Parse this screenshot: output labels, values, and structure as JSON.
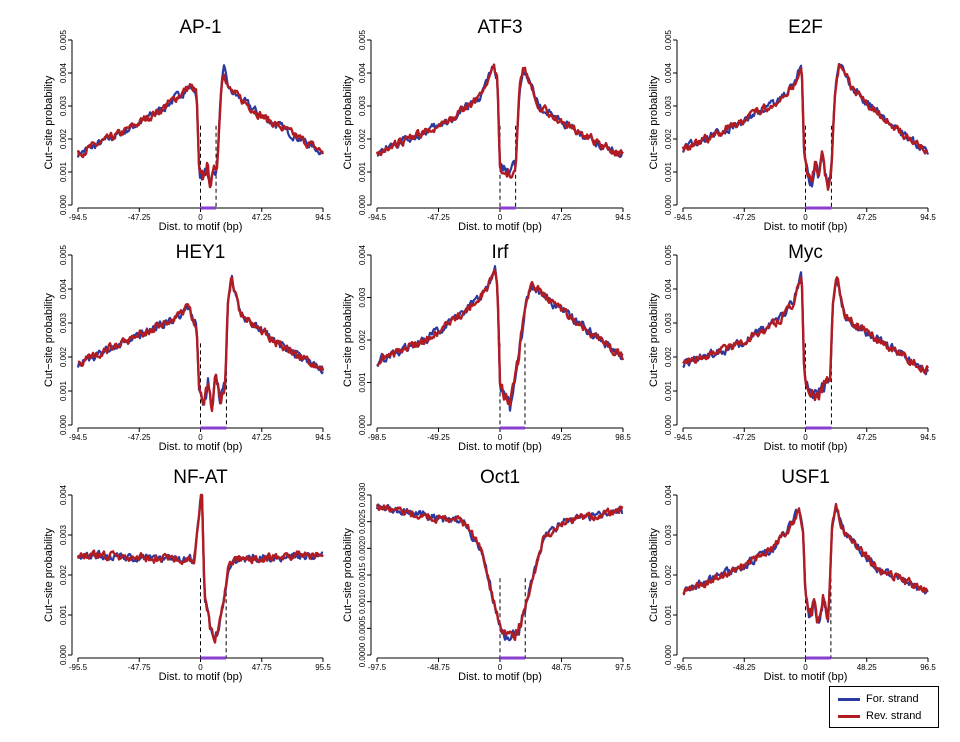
{
  "figure": {
    "for_color": "#2b3aa0",
    "rev_color": "#b01c22",
    "motif_bar_color": "#8a3fd1"
  },
  "legend": {
    "for_label": "For. strand",
    "rev_label": "Rev. strand"
  },
  "chart_data": [
    {
      "type": "line",
      "title": "AP-1",
      "xlabel": "Dist. to motif (bp)",
      "ylabel": "Cut−site probability",
      "xlim": [
        -94.5,
        94.5
      ],
      "xticks": [
        "-94.5",
        "-47.25",
        "0",
        "47.25",
        "94.5"
      ],
      "ylim": [
        0,
        0.005
      ],
      "yticks": [
        "0.000",
        "0.001",
        "0.002",
        "0.003",
        "0.004",
        "0.005"
      ],
      "motif_range": [
        0,
        12
      ],
      "profile": [
        [
          -94.5,
          0.00155
        ],
        [
          -60,
          0.0022
        ],
        [
          -30,
          0.0029
        ],
        [
          -8,
          0.0036
        ],
        [
          -3,
          0.0034
        ],
        [
          -1,
          0.0009
        ],
        [
          2,
          0.0008
        ],
        [
          5,
          0.0012
        ],
        [
          7,
          0.0007
        ],
        [
          10,
          0.0009
        ],
        [
          13,
          0.0013
        ],
        [
          16,
          0.0036
        ],
        [
          18,
          0.0041
        ],
        [
          22,
          0.0035
        ],
        [
          47,
          0.0027
        ],
        [
          94.5,
          0.0016
        ]
      ],
      "series": [
        {
          "name": "For. strand"
        },
        {
          "name": "Rev. strand"
        }
      ]
    },
    {
      "type": "line",
      "title": "ATF3",
      "xlabel": "Dist. to motif (bp)",
      "ylabel": "Cut−site probability",
      "xlim": [
        -94.5,
        94.5
      ],
      "xticks": [
        "-94.5",
        "-47.25",
        "0",
        "47.25",
        "94.5"
      ],
      "ylim": [
        0,
        0.005
      ],
      "yticks": [
        "0.000",
        "0.001",
        "0.002",
        "0.003",
        "0.004",
        "0.005"
      ],
      "motif_range": [
        0,
        12
      ],
      "profile": [
        [
          -94.5,
          0.0016
        ],
        [
          -40,
          0.0025
        ],
        [
          -15,
          0.0033
        ],
        [
          -5,
          0.0042
        ],
        [
          -2,
          0.0038
        ],
        [
          0,
          0.0011
        ],
        [
          6,
          0.001
        ],
        [
          12,
          0.0011
        ],
        [
          15,
          0.0036
        ],
        [
          18,
          0.0042
        ],
        [
          30,
          0.003
        ],
        [
          60,
          0.0022
        ],
        [
          94.5,
          0.0015
        ]
      ],
      "series": [
        {
          "name": "For. strand"
        },
        {
          "name": "Rev. strand"
        }
      ]
    },
    {
      "type": "line",
      "title": "E2F",
      "xlabel": "Dist. to motif (bp)",
      "ylabel": "Cut−site probability",
      "xlim": [
        -94.5,
        94.5
      ],
      "xticks": [
        "-94.5",
        "-47.25",
        "0",
        "47.25",
        "94.5"
      ],
      "ylim": [
        0,
        0.005
      ],
      "yticks": [
        "0.000",
        "0.001",
        "0.002",
        "0.003",
        "0.004",
        "0.005"
      ],
      "motif_range": [
        0,
        20
      ],
      "profile": [
        [
          -94.5,
          0.0017
        ],
        [
          -50,
          0.0025
        ],
        [
          -20,
          0.0032
        ],
        [
          -8,
          0.0037
        ],
        [
          -3,
          0.0043
        ],
        [
          -1,
          0.0015
        ],
        [
          2,
          0.001
        ],
        [
          5,
          0.0006
        ],
        [
          8,
          0.0014
        ],
        [
          10,
          0.0009
        ],
        [
          13,
          0.0015
        ],
        [
          17,
          0.0005
        ],
        [
          20,
          0.0012
        ],
        [
          23,
          0.0035
        ],
        [
          26,
          0.0043
        ],
        [
          35,
          0.0036
        ],
        [
          60,
          0.0026
        ],
        [
          94.5,
          0.0016
        ]
      ],
      "series": [
        {
          "name": "For. strand"
        },
        {
          "name": "Rev. strand"
        }
      ]
    },
    {
      "type": "line",
      "title": "HEY1",
      "xlabel": "Dist. to motif (bp)",
      "ylabel": "Cut−site probability",
      "xlim": [
        -94.5,
        94.5
      ],
      "xticks": [
        "-94.5",
        "-47.25",
        "0",
        "47.25",
        "94.5"
      ],
      "ylim": [
        0,
        0.005
      ],
      "yticks": [
        "0.000",
        "0.001",
        "0.002",
        "0.003",
        "0.004",
        "0.005"
      ],
      "motif_range": [
        0,
        20
      ],
      "profile": [
        [
          -94.5,
          0.0018
        ],
        [
          -50,
          0.0026
        ],
        [
          -20,
          0.0031
        ],
        [
          -10,
          0.0035
        ],
        [
          -3,
          0.0029
        ],
        [
          -1,
          0.001
        ],
        [
          3,
          0.0007
        ],
        [
          6,
          0.0013
        ],
        [
          9,
          0.0005
        ],
        [
          12,
          0.0016
        ],
        [
          15,
          0.0007
        ],
        [
          19,
          0.0011
        ],
        [
          21,
          0.0035
        ],
        [
          24,
          0.0043
        ],
        [
          30,
          0.0033
        ],
        [
          60,
          0.0024
        ],
        [
          94.5,
          0.0016
        ]
      ],
      "series": [
        {
          "name": "For. strand"
        },
        {
          "name": "Rev. strand"
        }
      ]
    },
    {
      "type": "line",
      "title": "Irf",
      "xlabel": "Dist. to motif (bp)",
      "ylabel": "Cut−site probability",
      "xlim": [
        -98.5,
        98.5
      ],
      "xticks": [
        "-98.5",
        "-49.25",
        "0",
        "49.25",
        "98.5"
      ],
      "ylim": [
        0,
        0.004
      ],
      "yticks": [
        "0.000",
        "0.001",
        "0.002",
        "0.003",
        "0.004"
      ],
      "motif_range": [
        0,
        20
      ],
      "profile": [
        [
          -98.5,
          0.0015
        ],
        [
          -60,
          0.002
        ],
        [
          -30,
          0.0026
        ],
        [
          -10,
          0.0032
        ],
        [
          -4,
          0.0037
        ],
        [
          -2,
          0.0032
        ],
        [
          0,
          0.001
        ],
        [
          4,
          0.0007
        ],
        [
          8,
          0.0004
        ],
        [
          11,
          0.0009
        ],
        [
          15,
          0.0016
        ],
        [
          20,
          0.0028
        ],
        [
          25,
          0.0033
        ],
        [
          45,
          0.0028
        ],
        [
          98.5,
          0.0016
        ]
      ],
      "series": [
        {
          "name": "For. strand"
        },
        {
          "name": "Rev. strand"
        }
      ]
    },
    {
      "type": "line",
      "title": "Myc",
      "xlabel": "Dist. to motif (bp)",
      "ylabel": "Cut−site probability",
      "xlim": [
        -94.5,
        94.5
      ],
      "xticks": [
        "-94.5",
        "-47.25",
        "0",
        "47.25",
        "94.5"
      ],
      "ylim": [
        0,
        0.005
      ],
      "yticks": [
        "0.000",
        "0.001",
        "0.002",
        "0.003",
        "0.004",
        "0.005"
      ],
      "motif_range": [
        0,
        20
      ],
      "profile": [
        [
          -94.5,
          0.0018
        ],
        [
          -50,
          0.0024
        ],
        [
          -20,
          0.0031
        ],
        [
          -10,
          0.0036
        ],
        [
          -3,
          0.0044
        ],
        [
          -1,
          0.0015
        ],
        [
          3,
          0.001
        ],
        [
          8,
          0.0008
        ],
        [
          14,
          0.0011
        ],
        [
          19,
          0.0014
        ],
        [
          21,
          0.0036
        ],
        [
          24,
          0.0044
        ],
        [
          30,
          0.0032
        ],
        [
          60,
          0.0024
        ],
        [
          94.5,
          0.0016
        ]
      ],
      "series": [
        {
          "name": "For. strand"
        },
        {
          "name": "Rev. strand"
        }
      ]
    },
    {
      "type": "line",
      "title": "NF-AT",
      "xlabel": "Dist. to motif (bp)",
      "ylabel": "Cut−site probability",
      "xlim": [
        -95.5,
        95.5
      ],
      "xticks": [
        "-95.5",
        "-47.75",
        "0",
        "47.75",
        "95.5"
      ],
      "ylim": [
        0,
        0.004
      ],
      "yticks": [
        "0.000",
        "0.001",
        "0.002",
        "0.003",
        "0.004"
      ],
      "motif_range": [
        0,
        20
      ],
      "profile": [
        [
          -95.5,
          0.0025
        ],
        [
          -30,
          0.0024
        ],
        [
          -5,
          0.0024
        ],
        [
          -1,
          0.0035
        ],
        [
          1,
          0.0043
        ],
        [
          2,
          0.003
        ],
        [
          3,
          0.0015
        ],
        [
          7,
          0.0008
        ],
        [
          10,
          0.0004
        ],
        [
          14,
          0.0005
        ],
        [
          18,
          0.0012
        ],
        [
          22,
          0.0022
        ],
        [
          28,
          0.0024
        ],
        [
          95.5,
          0.0025
        ]
      ],
      "series": [
        {
          "name": "For. strand"
        },
        {
          "name": "Rev. strand"
        }
      ]
    },
    {
      "type": "line",
      "title": "Oct1",
      "xlabel": "Dist. to motif (bp)",
      "ylabel": "Cut−site probability",
      "xlim": [
        -97.5,
        97.5
      ],
      "xticks": [
        "-97.5",
        "-48.75",
        "0",
        "48.75",
        "97.5"
      ],
      "ylim": [
        0,
        0.003
      ],
      "yticks": [
        "0.0000",
        "0.0005",
        "0.0010",
        "0.0015",
        "0.0020",
        "0.0025",
        "0.0030"
      ],
      "motif_range": [
        0,
        20
      ],
      "profile": [
        [
          -97.5,
          0.0028
        ],
        [
          -60,
          0.0026
        ],
        [
          -30,
          0.0025
        ],
        [
          -15,
          0.002
        ],
        [
          -5,
          0.001
        ],
        [
          2,
          0.0004
        ],
        [
          8,
          0.0003
        ],
        [
          15,
          0.0005
        ],
        [
          22,
          0.0011
        ],
        [
          35,
          0.0022
        ],
        [
          50,
          0.0025
        ],
        [
          97.5,
          0.0027
        ]
      ],
      "series": [
        {
          "name": "For. strand"
        },
        {
          "name": "Rev. strand"
        }
      ]
    },
    {
      "type": "line",
      "title": "USF1",
      "xlabel": "Dist. to motif (bp)",
      "ylabel": "Cut−site probability",
      "xlim": [
        -96.5,
        96.5
      ],
      "xticks": [
        "-96.5",
        "-48.25",
        "0",
        "48.25",
        "96.5"
      ],
      "ylim": [
        0,
        0.004
      ],
      "yticks": [
        "0.000",
        "0.001",
        "0.002",
        "0.003",
        "0.004"
      ],
      "motif_range": [
        0,
        20
      ],
      "profile": [
        [
          -96.5,
          0.0016
        ],
        [
          -50,
          0.0022
        ],
        [
          -25,
          0.0027
        ],
        [
          -10,
          0.0033
        ],
        [
          -5,
          0.0037
        ],
        [
          -2,
          0.0032
        ],
        [
          0,
          0.0015
        ],
        [
          3,
          0.0009
        ],
        [
          7,
          0.0013
        ],
        [
          10,
          0.0007
        ],
        [
          14,
          0.0014
        ],
        [
          18,
          0.0009
        ],
        [
          21,
          0.0033
        ],
        [
          24,
          0.0037
        ],
        [
          30,
          0.0031
        ],
        [
          55,
          0.0022
        ],
        [
          96.5,
          0.0016
        ]
      ],
      "series": [
        {
          "name": "For. strand"
        },
        {
          "name": "Rev. strand"
        }
      ]
    }
  ]
}
